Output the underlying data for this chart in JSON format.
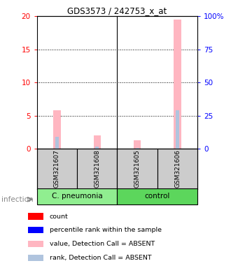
{
  "title": "GDS3573 / 242753_x_at",
  "samples": [
    "GSM321607",
    "GSM321608",
    "GSM321605",
    "GSM321606"
  ],
  "ylim_left": [
    0,
    20
  ],
  "ylim_right": [
    0,
    100
  ],
  "yticks_left": [
    0,
    5,
    10,
    15,
    20
  ],
  "yticks_right": [
    0,
    25,
    50,
    75,
    100
  ],
  "ytick_right_labels": [
    "0",
    "25",
    "50",
    "75",
    "100%"
  ],
  "value_absent": [
    5.8,
    2.0,
    1.3,
    19.5
  ],
  "rank_absent_pct": [
    9.0,
    1.5,
    0.75,
    29.0
  ],
  "count_color": "#FF0000",
  "pct_rank_color": "#0000FF",
  "value_color": "#FFB6C1",
  "rank_color": "#B0C4DE",
  "value_bar_width": 0.18,
  "rank_bar_width": 0.09,
  "count_bar_width": 0.05,
  "pct_bar_width": 0.05,
  "count_vals": [
    0.18,
    0.0,
    0.0,
    0.0
  ],
  "pct_rank_vals": [
    1.8,
    0.0,
    0.0,
    5.8
  ],
  "sample_box_color": "#CCCCCC",
  "cpneumonia_color": "#90EE90",
  "control_color": "#5CD65C",
  "infection_color": "#888888",
  "legend_items": [
    [
      "#FF0000",
      "count"
    ],
    [
      "#0000FF",
      "percentile rank within the sample"
    ],
    [
      "#FFB6C1",
      "value, Detection Call = ABSENT"
    ],
    [
      "#B0C4DE",
      "rank, Detection Call = ABSENT"
    ]
  ]
}
